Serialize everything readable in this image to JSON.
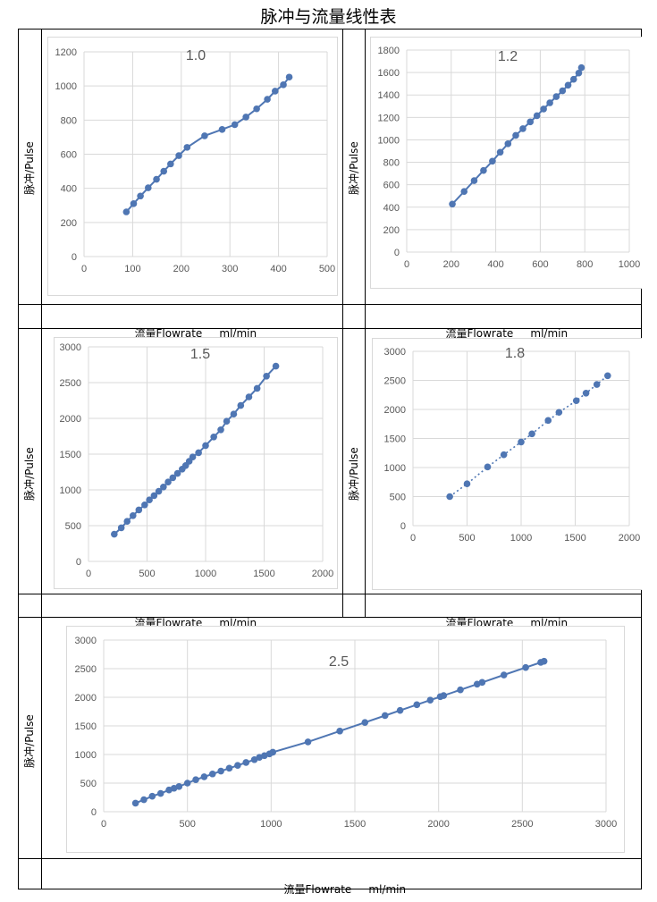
{
  "page": {
    "title": "脉冲与流量线性表"
  },
  "labels": {
    "y_axis": "脉冲/Pulse",
    "x_axis_main": "流量Flowrate",
    "x_axis_unit": "ml/min"
  },
  "chart_data": [
    {
      "type": "scatter",
      "title": "1.0",
      "line_style": "solid",
      "xlim": [
        0,
        500
      ],
      "ylim": [
        0,
        1200
      ],
      "xticks": [
        0,
        100,
        200,
        300,
        400,
        500
      ],
      "yticks": [
        0,
        200,
        400,
        600,
        800,
        1000,
        1200
      ],
      "ylabel": "脉冲/Pulse",
      "xlabel": "流量Flowrate ml/min",
      "x": [
        87,
        102,
        116,
        132,
        149,
        164,
        178,
        195,
        212,
        248,
        284,
        310,
        333,
        355,
        377,
        393,
        410,
        422
      ],
      "y": [
        262,
        310,
        355,
        403,
        453,
        500,
        543,
        592,
        640,
        708,
        745,
        773,
        818,
        866,
        922,
        970,
        1007,
        1052
      ]
    },
    {
      "type": "scatter",
      "title": "1.2",
      "line_style": "solid",
      "xlim": [
        0,
        1000
      ],
      "ylim": [
        0,
        1800
      ],
      "xticks": [
        0,
        200,
        400,
        600,
        800,
        1000
      ],
      "yticks": [
        0,
        200,
        400,
        600,
        800,
        1000,
        1200,
        1400,
        1600,
        1800
      ],
      "ylabel": "脉冲/Pulse",
      "xlabel": "流量Flowrate ml/min",
      "x": [
        205,
        258,
        303,
        345,
        385,
        420,
        455,
        490,
        522,
        555,
        585,
        615,
        643,
        672,
        700,
        725,
        750,
        773,
        785
      ],
      "y": [
        428,
        540,
        637,
        727,
        810,
        890,
        965,
        1040,
        1100,
        1160,
        1215,
        1275,
        1330,
        1385,
        1437,
        1487,
        1540,
        1595,
        1643
      ]
    },
    {
      "type": "scatter",
      "title": "1.5",
      "line_style": "solid",
      "xlim": [
        0,
        2000
      ],
      "ylim": [
        0,
        3000
      ],
      "xticks": [
        0,
        500,
        1000,
        1500,
        2000
      ],
      "yticks": [
        0,
        500,
        1000,
        1500,
        2000,
        2500,
        3000
      ],
      "ylabel": "脉冲/Pulse",
      "xlabel": "流量Flowrate ml/min",
      "x": [
        220,
        280,
        330,
        380,
        430,
        480,
        520,
        560,
        600,
        640,
        680,
        720,
        760,
        800,
        830,
        860,
        890,
        940,
        1000,
        1070,
        1130,
        1180,
        1240,
        1300,
        1370,
        1440,
        1520,
        1600
      ],
      "y": [
        380,
        470,
        560,
        640,
        720,
        790,
        860,
        920,
        980,
        1040,
        1110,
        1170,
        1230,
        1290,
        1340,
        1400,
        1460,
        1520,
        1620,
        1740,
        1840,
        1960,
        2060,
        2180,
        2300,
        2420,
        2590,
        2730
      ]
    },
    {
      "type": "scatter",
      "title": "1.8",
      "line_style": "dotted",
      "xlim": [
        0,
        2000
      ],
      "ylim": [
        0,
        3000
      ],
      "xticks": [
        0,
        500,
        1000,
        1500,
        2000
      ],
      "yticks": [
        0,
        500,
        1000,
        1500,
        2000,
        2500,
        3000
      ],
      "ylabel": "脉冲/Pulse",
      "xlabel": "流量Flowrate ml/min",
      "x": [
        340,
        500,
        690,
        840,
        1000,
        1100,
        1250,
        1350,
        1510,
        1600,
        1700,
        1800
      ],
      "y": [
        500,
        720,
        1010,
        1220,
        1440,
        1580,
        1810,
        1950,
        2150,
        2280,
        2430,
        2580
      ]
    },
    {
      "type": "scatter",
      "title": "2.5",
      "line_style": "solid",
      "xlim": [
        0,
        3000
      ],
      "ylim": [
        0,
        3000
      ],
      "xticks": [
        0,
        500,
        1000,
        1500,
        2000,
        2500,
        3000
      ],
      "yticks": [
        0,
        500,
        1000,
        1500,
        2000,
        2500,
        3000
      ],
      "ylabel": "脉冲/Pulse",
      "xlabel": "流量Flowrate ml/min",
      "x": [
        190,
        240,
        290,
        340,
        390,
        420,
        450,
        500,
        550,
        600,
        650,
        700,
        750,
        800,
        850,
        900,
        930,
        960,
        990,
        1010,
        1220,
        1410,
        1560,
        1680,
        1770,
        1870,
        1950,
        2010,
        2030,
        2130,
        2230,
        2260,
        2390,
        2520,
        2610,
        2630
      ],
      "y": [
        150,
        210,
        270,
        320,
        380,
        410,
        440,
        500,
        560,
        610,
        660,
        710,
        760,
        810,
        860,
        910,
        950,
        980,
        1010,
        1040,
        1220,
        1410,
        1560,
        1680,
        1770,
        1870,
        1950,
        2010,
        2030,
        2130,
        2230,
        2260,
        2390,
        2520,
        2610,
        2630
      ]
    }
  ]
}
